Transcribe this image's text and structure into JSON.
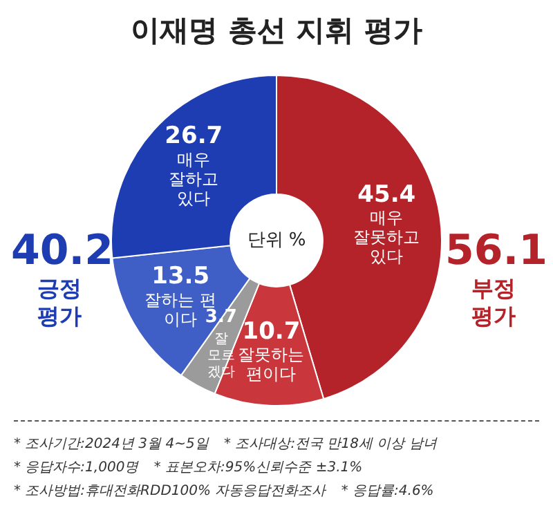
{
  "chart_data": {
    "type": "donut",
    "title": "이재명 총선 지휘 평가",
    "categories": [
      "매우 잘못하고 있다",
      "잘못하는 편이다",
      "잘 모르겠다",
      "잘하는 편 이다",
      "매우 잘하고 있다"
    ],
    "values": [
      45.4,
      10.7,
      3.7,
      13.5,
      26.7
    ],
    "colors": [
      "#b5232a",
      "#c9373d",
      "#9b9b9b",
      "#3f5fc6",
      "#1f3db3"
    ],
    "data_labels": true,
    "legend": false,
    "annotations": [
      "40.2",
      "긍정 평가",
      "56.1",
      "부정 평가",
      "단위 %",
      "* 조사기간:2024년 3월 4~5일",
      "* 조사대상:전국 만18세 이상 남녀",
      "* 응답자수:1,000명",
      "* 표본오차:95%신뢰수준 ±3.1%",
      "* 조사방법:휴대전화RDD100% 자동응답전화조사",
      "* 응답률:4.6%"
    ]
  }
}
